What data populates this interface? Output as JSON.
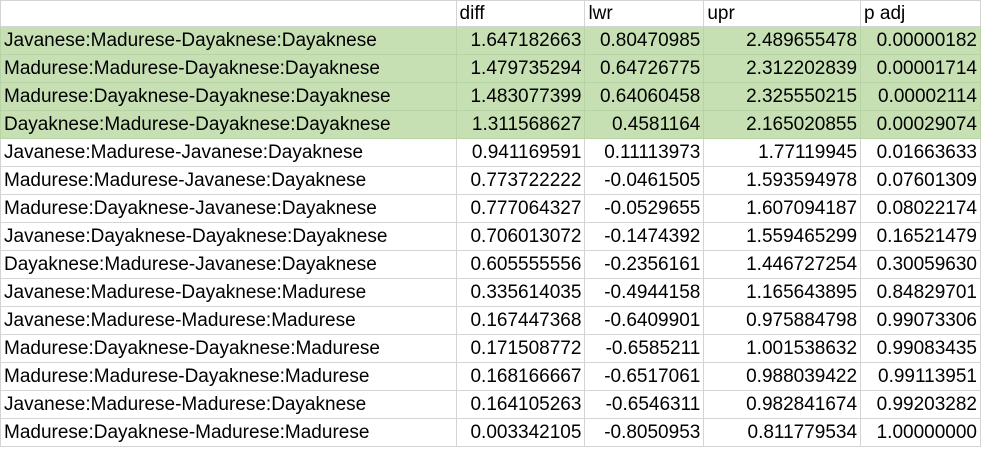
{
  "columns": [
    "",
    "diff",
    "lwr",
    "upr",
    "p adj"
  ],
  "highlight_color": "#c6e0b4",
  "rows": [
    {
      "label": "Javanese:Madurese-Dayaknese:Dayaknese",
      "diff": "1.647182663",
      "lwr": "0.80470985",
      "upr": "2.489655478",
      "padj": "0.00000182",
      "highlighted": true
    },
    {
      "label": "Madurese:Madurese-Dayaknese:Dayaknese",
      "diff": "1.479735294",
      "lwr": "0.64726775",
      "upr": "2.312202839",
      "padj": "0.00001714",
      "highlighted": true
    },
    {
      "label": "Madurese:Dayaknese-Dayaknese:Dayaknese",
      "diff": "1.483077399",
      "lwr": "0.64060458",
      "upr": "2.325550215",
      "padj": "0.00002114",
      "highlighted": true
    },
    {
      "label": "Dayaknese:Madurese-Dayaknese:Dayaknese",
      "diff": "1.311568627",
      "lwr": "0.4581164",
      "upr": "2.165020855",
      "padj": "0.00029074",
      "highlighted": true
    },
    {
      "label": "Javanese:Madurese-Javanese:Dayaknese",
      "diff": "0.941169591",
      "lwr": "0.11113973",
      "upr": "1.77119945",
      "padj": "0.01663633",
      "highlighted": false
    },
    {
      "label": "Madurese:Madurese-Javanese:Dayaknese",
      "diff": "0.773722222",
      "lwr": "-0.0461505",
      "upr": "1.593594978",
      "padj": "0.07601309",
      "highlighted": false
    },
    {
      "label": "Madurese:Dayaknese-Javanese:Dayaknese",
      "diff": "0.777064327",
      "lwr": "-0.0529655",
      "upr": "1.607094187",
      "padj": "0.08022174",
      "highlighted": false
    },
    {
      "label": "Javanese:Dayaknese-Dayaknese:Dayaknese",
      "diff": "0.706013072",
      "lwr": "-0.1474392",
      "upr": "1.559465299",
      "padj": "0.16521479",
      "highlighted": false
    },
    {
      "label": "Dayaknese:Madurese-Javanese:Dayaknese",
      "diff": "0.605555556",
      "lwr": "-0.2356161",
      "upr": "1.446727254",
      "padj": "0.30059630",
      "highlighted": false
    },
    {
      "label": "Javanese:Madurese-Dayaknese:Madurese",
      "diff": "0.335614035",
      "lwr": "-0.4944158",
      "upr": "1.165643895",
      "padj": "0.84829701",
      "highlighted": false
    },
    {
      "label": "Javanese:Madurese-Madurese:Madurese",
      "diff": "0.167447368",
      "lwr": "-0.6409901",
      "upr": "0.975884798",
      "padj": "0.99073306",
      "highlighted": false
    },
    {
      "label": "Madurese:Dayaknese-Dayaknese:Madurese",
      "diff": "0.171508772",
      "lwr": "-0.6585211",
      "upr": "1.001538632",
      "padj": "0.99083435",
      "highlighted": false
    },
    {
      "label": "Madurese:Madurese-Dayaknese:Madurese",
      "diff": "0.168166667",
      "lwr": "-0.6517061",
      "upr": "0.988039422",
      "padj": "0.99113951",
      "highlighted": false
    },
    {
      "label": "Javanese:Madurese-Madurese:Dayaknese",
      "diff": "0.164105263",
      "lwr": "-0.6546311",
      "upr": "0.982841674",
      "padj": "0.99203282",
      "highlighted": false
    },
    {
      "label": "Madurese:Dayaknese-Madurese:Madurese",
      "diff": "0.003342105",
      "lwr": "-0.8050953",
      "upr": "0.811779534",
      "padj": "1.00000000",
      "highlighted": false
    }
  ]
}
